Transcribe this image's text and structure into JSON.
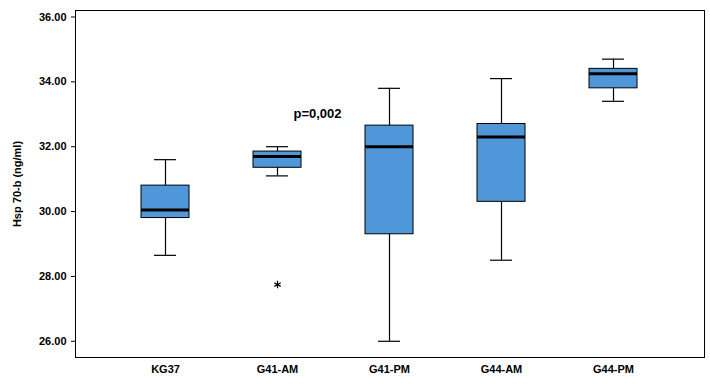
{
  "chart_data": {
    "type": "box",
    "y_label": "Hsp 70-b (ng/ml)",
    "categories": [
      "KG37",
      "G41-AM",
      "G41-PM",
      "G44-AM",
      "G44-PM"
    ],
    "min": [
      28.65,
      31.1,
      26.0,
      28.5,
      33.4
    ],
    "q1": [
      29.8,
      31.35,
      29.3,
      30.3,
      33.8
    ],
    "median": [
      30.05,
      31.7,
      32.0,
      32.3,
      34.25
    ],
    "q3": [
      30.8,
      31.85,
      32.65,
      32.7,
      34.4
    ],
    "max": [
      31.6,
      32.0,
      33.8,
      34.1,
      34.7
    ],
    "outliers": [
      [],
      [
        27.75
      ],
      [],
      [],
      []
    ],
    "color": "#5097da",
    "marker": "asterisk",
    "grid": false,
    "ylim": [
      25.5,
      36.2
    ],
    "yticks": [
      {
        "value": 26,
        "label": "26.00"
      },
      {
        "value": 28,
        "label": "28.00"
      },
      {
        "value": 30,
        "label": "30.00"
      },
      {
        "value": 32,
        "label": "32.00"
      },
      {
        "value": 34,
        "label": "34.00"
      },
      {
        "value": 36,
        "label": "36.00"
      }
    ],
    "annotations": [
      {
        "text": "p=0,002"
      }
    ]
  }
}
